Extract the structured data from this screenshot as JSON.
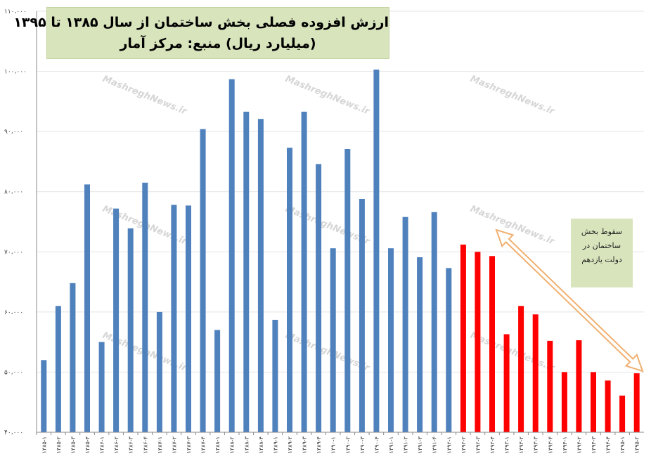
{
  "title": {
    "line1": "ارزش افزوده فصلی بخش ساختمان از سال ۱۳۸۵ تا ۱۳۹۵",
    "line2": "(میلیارد ریال) منبع: مرکز آمار"
  },
  "annotation": {
    "line1": "سقوط بخش",
    "line2": "ساختمان در",
    "line3": "دولت یازدهم"
  },
  "watermark": "MashreghNews.ir",
  "colors": {
    "blue": "#4f81bd",
    "red": "#ff0000",
    "arrow": "#f0b070",
    "box": "#d8e4bc"
  },
  "chart_data": {
    "type": "bar",
    "title": "ارزش افزوده فصلی بخش ساختمان از سال ۱۳۸۵ تا ۱۳۹۵ (میلیارد ریال) منبع: مرکز آمار",
    "xlabel": "",
    "ylabel": "",
    "ylim": [
      40000,
      110000
    ],
    "yticks": [
      {
        "value": 40000,
        "label": "۴۰،۰۰۰"
      },
      {
        "value": 50000,
        "label": "۵۰،۰۰۰"
      },
      {
        "value": 60000,
        "label": "۶۰،۰۰۰"
      },
      {
        "value": 70000,
        "label": "۷۰،۰۰۰"
      },
      {
        "value": 80000,
        "label": "۸۰،۰۰۰"
      },
      {
        "value": 90000,
        "label": "۹۰،۰۰۰"
      },
      {
        "value": 100000,
        "label": "۱۰۰،۰۰۰"
      },
      {
        "value": 110000,
        "label": "۱۱۰،۰۰۰"
      }
    ],
    "grid": true,
    "categories": [
      "۱۳۸۵-۱",
      "۱۳۸۵-۲",
      "۱۳۸۵-۳",
      "۱۳۸۵-۴",
      "۱۳۸۶-۱",
      "۱۳۸۶-۲",
      "۱۳۸۶-۳",
      "۱۳۸۶-۴",
      "۱۳۸۷-۱",
      "۱۳۸۷-۲",
      "۱۳۸۷-۳",
      "۱۳۸۷-۴",
      "۱۳۸۸-۱",
      "۱۳۸۸-۲",
      "۱۳۸۸-۳",
      "۱۳۸۸-۴",
      "۱۳۸۹-۱",
      "۱۳۸۹-۲",
      "۱۳۸۹-۳",
      "۱۳۸۹-۴",
      "۱۳۹۰-۱",
      "۱۳۹۰-۲",
      "۱۳۹۰-۳",
      "۱۳۹۰-۴",
      "۱۳۹۱-۱",
      "۱۳۹۱-۲",
      "۱۳۹۱-۳",
      "۱۳۹۱-۴",
      "۱۳۹۲-۱",
      "۱۳۹۲-۲",
      "۱۳۹۲-۳",
      "۱۳۹۲-۴",
      "۱۳۹۳-۱",
      "۱۳۹۳-۲",
      "۱۳۹۳-۳",
      "۱۳۹۳-۴",
      "۱۳۹۴-۱",
      "۱۳۹۴-۲",
      "۱۳۹۴-۳",
      "۱۳۹۴-۴",
      "۱۳۹۵-۱",
      "۱۳۹۵-۲"
    ],
    "values": [
      52000,
      61000,
      64800,
      81200,
      55000,
      77200,
      73900,
      81500,
      60000,
      77800,
      77700,
      90400,
      57000,
      98700,
      93300,
      92100,
      58700,
      87300,
      93300,
      84600,
      70600,
      87100,
      78800,
      100300,
      70600,
      75800,
      69100,
      76600,
      67300,
      71200,
      70000,
      69300,
      56300,
      61000,
      59600,
      55200,
      50000,
      55300,
      50000,
      48600,
      46100,
      49800
    ],
    "bar_colors": [
      "blue",
      "blue",
      "blue",
      "blue",
      "blue",
      "blue",
      "blue",
      "blue",
      "blue",
      "blue",
      "blue",
      "blue",
      "blue",
      "blue",
      "blue",
      "blue",
      "blue",
      "blue",
      "blue",
      "blue",
      "blue",
      "blue",
      "blue",
      "blue",
      "blue",
      "blue",
      "blue",
      "blue",
      "blue",
      "red",
      "red",
      "red",
      "red",
      "red",
      "red",
      "red",
      "red",
      "red",
      "red",
      "red",
      "red",
      "red"
    ]
  }
}
